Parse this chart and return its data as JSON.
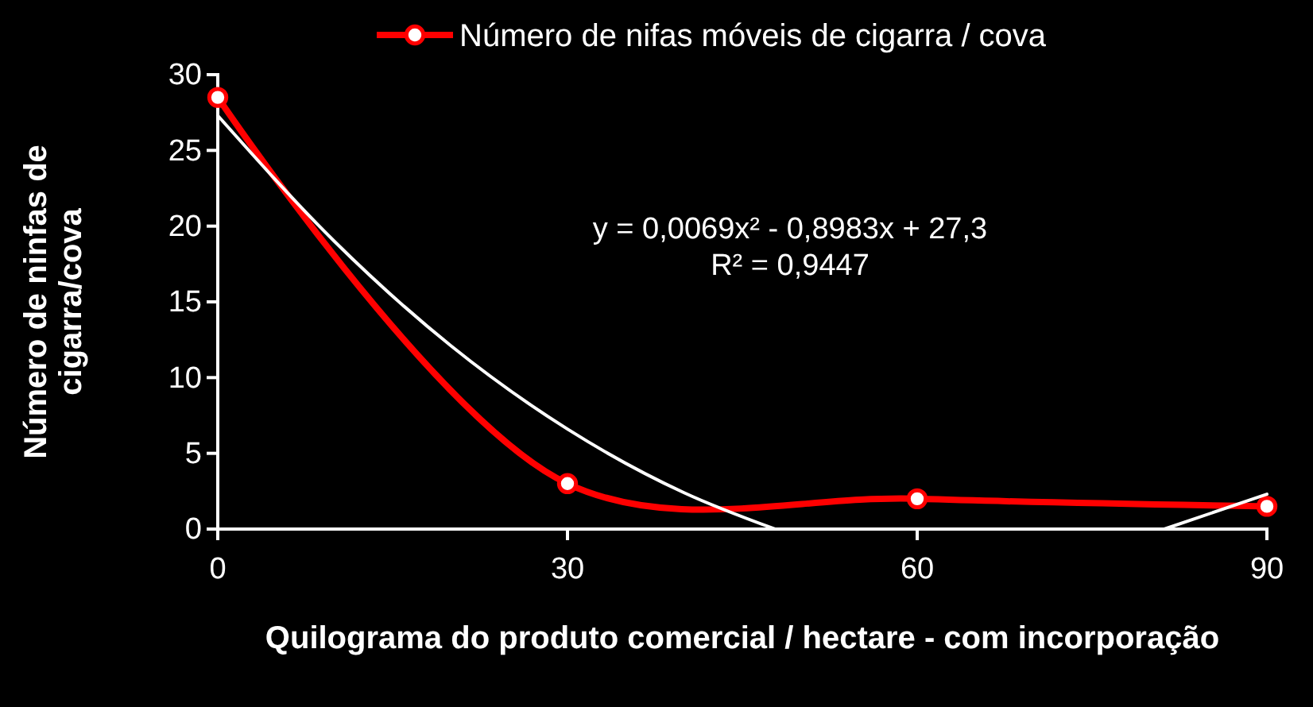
{
  "chart_data": {
    "type": "line",
    "xlabel": "Quilograma do produto comercial / hectare - com incorporação",
    "ylabel": "Número de ninfas de cigarra/cova",
    "x": [
      0,
      30,
      60,
      90
    ],
    "xlim": [
      0,
      90
    ],
    "xticks": [
      0,
      30,
      60,
      90
    ],
    "ylim": [
      0,
      30
    ],
    "yticks": [
      0,
      5,
      10,
      15,
      20,
      25,
      30
    ],
    "series": [
      {
        "name": "Número de nifas móveis de cigarra / cova",
        "color": "#ff0000",
        "values": [
          28.5,
          3,
          2,
          1.5
        ],
        "marker": "circle"
      },
      {
        "type": "line",
        "color": "#ffffff",
        "x": [
          0,
          10,
          20,
          30,
          40,
          47.8,
          60,
          81.2,
          90
        ],
        "values": [
          27.3,
          19.0,
          12.1,
          6.6,
          2.4,
          0,
          null,
          0,
          2.3
        ],
        "marker": "none"
      }
    ],
    "annotations": [
      "y = 0,0069x² - 0,8983x + 27,3\nR² = 0,9447"
    ],
    "legend": "top",
    "grid": false
  }
}
